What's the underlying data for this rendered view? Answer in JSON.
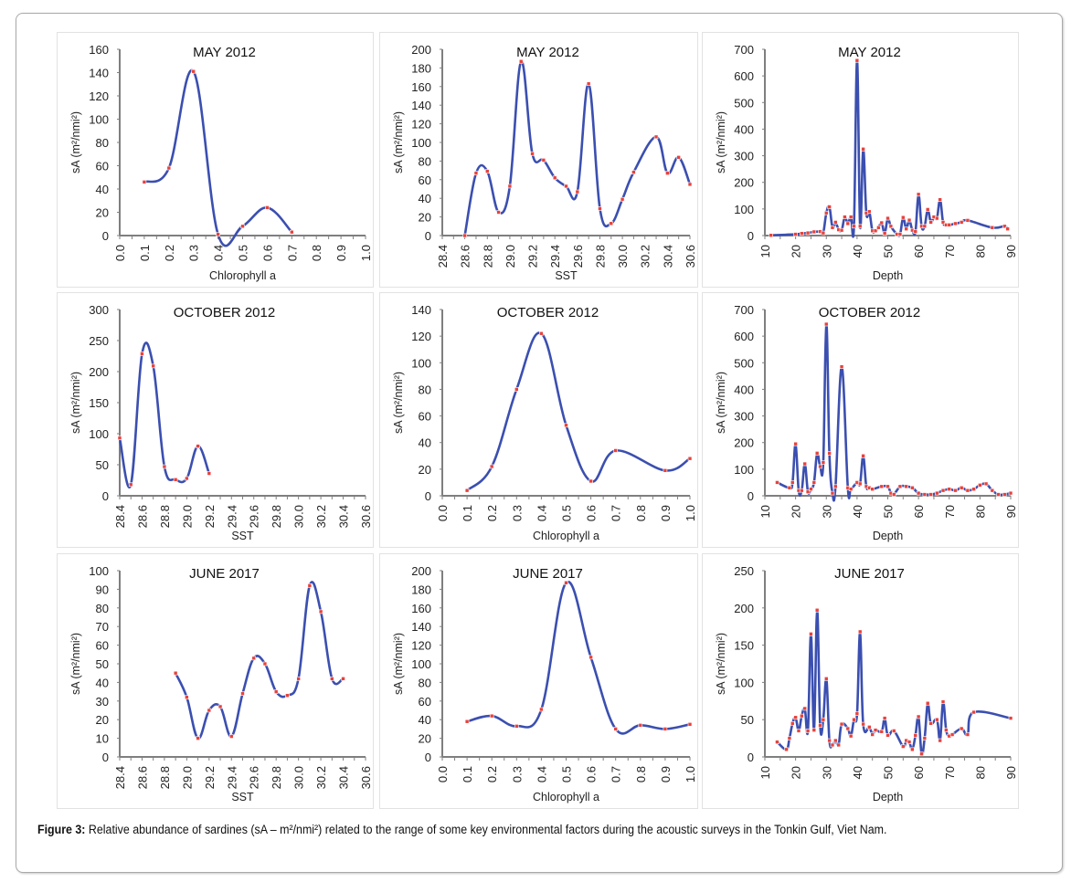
{
  "figure": {
    "caption_label": "Figure 3:",
    "caption_text": " Relative abundance of sardines (sA – m²/nmi²) related to the range of some key environmental factors during the acoustic surveys in the Tonkin Gulf, Viet Nam."
  },
  "colors": {
    "line": "#3b4fb0",
    "marker": "#e8413b",
    "axis": "#7f7f7f",
    "text": "#222222"
  },
  "chart_data": [
    {
      "id": "may2012-chl",
      "type": "line",
      "title": "MAY 2012",
      "xlabel": "Chlorophyll a",
      "ylabel": "sA (m²/nmi²)",
      "xlim": [
        0.0,
        1.0
      ],
      "ylim": [
        0,
        160
      ],
      "ystep": 20,
      "xstep": 0.1,
      "xdecimals": 1,
      "xticks": [
        "0.0",
        "0.1",
        "0.2",
        "0.3",
        "0.4",
        "0.5",
        "0.6",
        "0.7",
        "0.8",
        "0.9",
        "1.0"
      ],
      "yticks": [
        "0",
        "20",
        "40",
        "60",
        "80",
        "100",
        "120",
        "140",
        "160"
      ],
      "x": [
        0.1,
        0.2,
        0.3,
        0.4,
        0.5,
        0.6,
        0.7
      ],
      "y": [
        46,
        58,
        141,
        1,
        8,
        24,
        3
      ]
    },
    {
      "id": "may2012-sst",
      "type": "line",
      "title": "MAY 2012",
      "xlabel": "SST",
      "ylabel": "sA (m²/nmi²)",
      "xlim": [
        28.4,
        30.6
      ],
      "ylim": [
        0,
        200
      ],
      "ystep": 20,
      "xstep": 0.2,
      "xticks": [
        "28.4",
        "28.6",
        "28.8",
        "29.0",
        "29.2",
        "29.4",
        "29.6",
        "29.8",
        "30.0",
        "30.2",
        "30.4",
        "30.6"
      ],
      "yticks": [
        "0",
        "20",
        "40",
        "60",
        "80",
        "100",
        "120",
        "140",
        "160",
        "180",
        "200"
      ],
      "x": [
        28.6,
        28.7,
        28.8,
        28.9,
        29.0,
        29.1,
        29.2,
        29.3,
        29.4,
        29.5,
        29.6,
        29.7,
        29.8,
        29.9,
        30.0,
        30.1,
        30.3,
        30.4,
        30.5,
        30.6
      ],
      "y": [
        0,
        67,
        69,
        25,
        53,
        187,
        88,
        81,
        62,
        53,
        47,
        163,
        29,
        13,
        39,
        68,
        106,
        67,
        84,
        55
      ]
    },
    {
      "id": "may2012-depth",
      "type": "line",
      "title": "MAY 2012",
      "xlabel": "Depth",
      "ylabel": "sA (m²/nmi²)",
      "xlim": [
        10,
        90
      ],
      "ylim": [
        0,
        700
      ],
      "ystep": 100,
      "xstep": 10,
      "xticks": [
        "10",
        "20",
        "30",
        "40",
        "50",
        "60",
        "70",
        "80",
        "90"
      ],
      "yticks": [
        "0",
        "100",
        "200",
        "300",
        "400",
        "500",
        "600",
        "700"
      ],
      "x": [
        12,
        20,
        22,
        24,
        26,
        28,
        29,
        30,
        31,
        32,
        33,
        34,
        35,
        36,
        37,
        38,
        39,
        40,
        41,
        42,
        43,
        44,
        45,
        46,
        47,
        48,
        49,
        50,
        51,
        53,
        54,
        55,
        56,
        57,
        58,
        59,
        60,
        61,
        62,
        63,
        64,
        65,
        66,
        67,
        68,
        69,
        70,
        72,
        74,
        76,
        84,
        88,
        89
      ],
      "y": [
        1,
        5,
        8,
        10,
        14,
        15,
        10,
        85,
        108,
        30,
        50,
        22,
        20,
        70,
        45,
        70,
        35,
        658,
        35,
        325,
        85,
        90,
        18,
        18,
        30,
        48,
        8,
        65,
        35,
        5,
        5,
        68,
        25,
        58,
        20,
        15,
        155,
        35,
        35,
        98,
        50,
        70,
        65,
        135,
        50,
        40,
        40,
        45,
        50,
        57,
        30,
        35,
        25
      ]
    },
    {
      "id": "oct2012-sst",
      "type": "line",
      "title": "OCTOBER 2012",
      "xlabel": "SST",
      "ylabel": "sA (m²/nmi²)",
      "xlim": [
        28.4,
        30.6
      ],
      "ylim": [
        0,
        300
      ],
      "ystep": 50,
      "xstep": 0.2,
      "xticks": [
        "28.4",
        "28.6",
        "28.8",
        "29.0",
        "29.2",
        "29.4",
        "29.6",
        "29.8",
        "30.0",
        "30.2",
        "30.4",
        "30.6"
      ],
      "yticks": [
        "0",
        "50",
        "100",
        "150",
        "200",
        "250",
        "300"
      ],
      "x": [
        28.4,
        28.5,
        28.6,
        28.7,
        28.8,
        28.9,
        29.0,
        29.1,
        29.2
      ],
      "y": [
        93,
        18,
        229,
        209,
        47,
        26,
        28,
        80,
        36
      ]
    },
    {
      "id": "oct2012-chl",
      "type": "line",
      "title": "OCTOBER 2012",
      "xlabel": "Chlorophyll a",
      "ylabel": "sA (m²/nmi²)",
      "xlim": [
        0.0,
        1.0
      ],
      "ylim": [
        0,
        140
      ],
      "ystep": 20,
      "xstep": 0.1,
      "xticks": [
        "0.0",
        "0.1",
        "0.2",
        "0.3",
        "0.4",
        "0.5",
        "0.6",
        "0.7",
        "0.8",
        "0.9",
        "1.0"
      ],
      "yticks": [
        "0",
        "20",
        "40",
        "60",
        "80",
        "100",
        "120",
        "140"
      ],
      "x": [
        0.1,
        0.2,
        0.3,
        0.4,
        0.5,
        0.6,
        0.7,
        0.9,
        1.0
      ],
      "y": [
        4,
        22,
        80,
        122,
        53,
        11,
        34,
        19,
        28
      ]
    },
    {
      "id": "oct2012-depth",
      "type": "line",
      "title": "OCTOBER 2012",
      "xlabel": "Depth",
      "ylabel": "sA (m²/nmi²)",
      "xlim": [
        10,
        90
      ],
      "ylim": [
        0,
        700
      ],
      "ystep": 100,
      "xstep": 10,
      "xticks": [
        "10",
        "20",
        "30",
        "40",
        "50",
        "60",
        "70",
        "80",
        "90"
      ],
      "yticks": [
        "0",
        "100",
        "200",
        "300",
        "400",
        "500",
        "600",
        "700"
      ],
      "x": [
        14,
        18,
        19,
        20,
        21,
        22,
        23,
        24,
        25,
        26,
        27,
        28,
        29,
        30,
        31,
        32,
        33,
        35,
        37,
        38,
        40,
        41,
        42,
        43,
        44,
        45,
        48,
        50,
        51,
        52,
        54,
        56,
        58,
        60,
        62,
        64,
        66,
        68,
        70,
        72,
        74,
        76,
        78,
        80,
        82,
        84,
        86,
        88,
        90
      ],
      "y": [
        50,
        30,
        50,
        195,
        20,
        20,
        120,
        15,
        25,
        50,
        160,
        110,
        125,
        645,
        160,
        10,
        35,
        485,
        30,
        25,
        50,
        45,
        150,
        35,
        30,
        25,
        35,
        35,
        10,
        5,
        35,
        35,
        30,
        10,
        5,
        5,
        10,
        20,
        25,
        20,
        30,
        20,
        25,
        40,
        45,
        20,
        5,
        5,
        10
      ]
    },
    {
      "id": "jun2017-sst",
      "type": "line",
      "title": "JUNE 2017",
      "xlabel": "SST",
      "ylabel": "sA (m²/nmi²)",
      "xlim": [
        28.4,
        30.6
      ],
      "ylim": [
        0,
        100
      ],
      "ystep": 10,
      "xstep": 0.2,
      "xticks": [
        "28.4",
        "28.6",
        "28.8",
        "29.0",
        "29.2",
        "29.4",
        "29.6",
        "29.8",
        "30.0",
        "30.2",
        "30.4",
        "30.6"
      ],
      "yticks": [
        "0",
        "10",
        "20",
        "30",
        "40",
        "50",
        "60",
        "70",
        "80",
        "90",
        "100"
      ],
      "x": [
        28.9,
        29.0,
        29.1,
        29.2,
        29.3,
        29.4,
        29.5,
        29.6,
        29.7,
        29.8,
        29.9,
        30.0,
        30.1,
        30.2,
        30.3,
        30.4
      ],
      "y": [
        45,
        32,
        10,
        25,
        27,
        11,
        34,
        53,
        50,
        35,
        33,
        42,
        92,
        78,
        42,
        42
      ]
    },
    {
      "id": "jun2017-chl",
      "type": "line",
      "title": "JUNE 2017",
      "xlabel": "Chlorophyll a",
      "ylabel": "sA (m²/nmi²)",
      "xlim": [
        0.0,
        1.0
      ],
      "ylim": [
        0,
        200
      ],
      "ystep": 20,
      "xstep": 0.1,
      "xticks": [
        "0.0",
        "0.1",
        "0.2",
        "0.3",
        "0.4",
        "0.5",
        "0.6",
        "0.7",
        "0.8",
        "0.9",
        "1.0"
      ],
      "yticks": [
        "0",
        "20",
        "40",
        "60",
        "80",
        "100",
        "120",
        "140",
        "160",
        "180",
        "200"
      ],
      "x": [
        0.1,
        0.2,
        0.3,
        0.4,
        0.5,
        0.6,
        0.7,
        0.8,
        0.9,
        1.0
      ],
      "y": [
        38,
        44,
        33,
        51,
        187,
        107,
        30,
        34,
        30,
        35
      ]
    },
    {
      "id": "jun2017-depth",
      "type": "line",
      "title": "JUNE 2017",
      "xlabel": "Depth",
      "ylabel": "sA (m²/nmi²)",
      "xlim": [
        10,
        90
      ],
      "ylim": [
        0,
        250
      ],
      "ystep": 50,
      "xstep": 10,
      "xticks": [
        "10",
        "20",
        "30",
        "40",
        "50",
        "60",
        "70",
        "80",
        "90"
      ],
      "yticks": [
        "0",
        "50",
        "100",
        "150",
        "200",
        "250"
      ],
      "x": [
        14,
        17,
        18,
        19,
        20,
        21,
        22,
        23,
        24,
        25,
        26,
        27,
        28,
        29,
        30,
        31,
        32,
        33,
        34,
        35,
        37,
        38,
        39,
        40,
        41,
        42,
        44,
        45,
        46,
        48,
        49,
        50,
        52,
        55,
        56,
        57,
        58,
        59,
        60,
        61,
        62,
        63,
        64,
        66,
        67,
        68,
        69,
        70,
        71,
        74,
        76,
        78,
        90
      ],
      "y": [
        20,
        10,
        25,
        45,
        53,
        35,
        55,
        65,
        35,
        165,
        36,
        197,
        42,
        50,
        105,
        22,
        16,
        22,
        16,
        44,
        38,
        28,
        50,
        58,
        168,
        44,
        40,
        30,
        36,
        34,
        52,
        29,
        35,
        14,
        22,
        20,
        10,
        29,
        54,
        4,
        25,
        72,
        45,
        50,
        22,
        74,
        36,
        28,
        30,
        38,
        30,
        60,
        52
      ]
    }
  ]
}
